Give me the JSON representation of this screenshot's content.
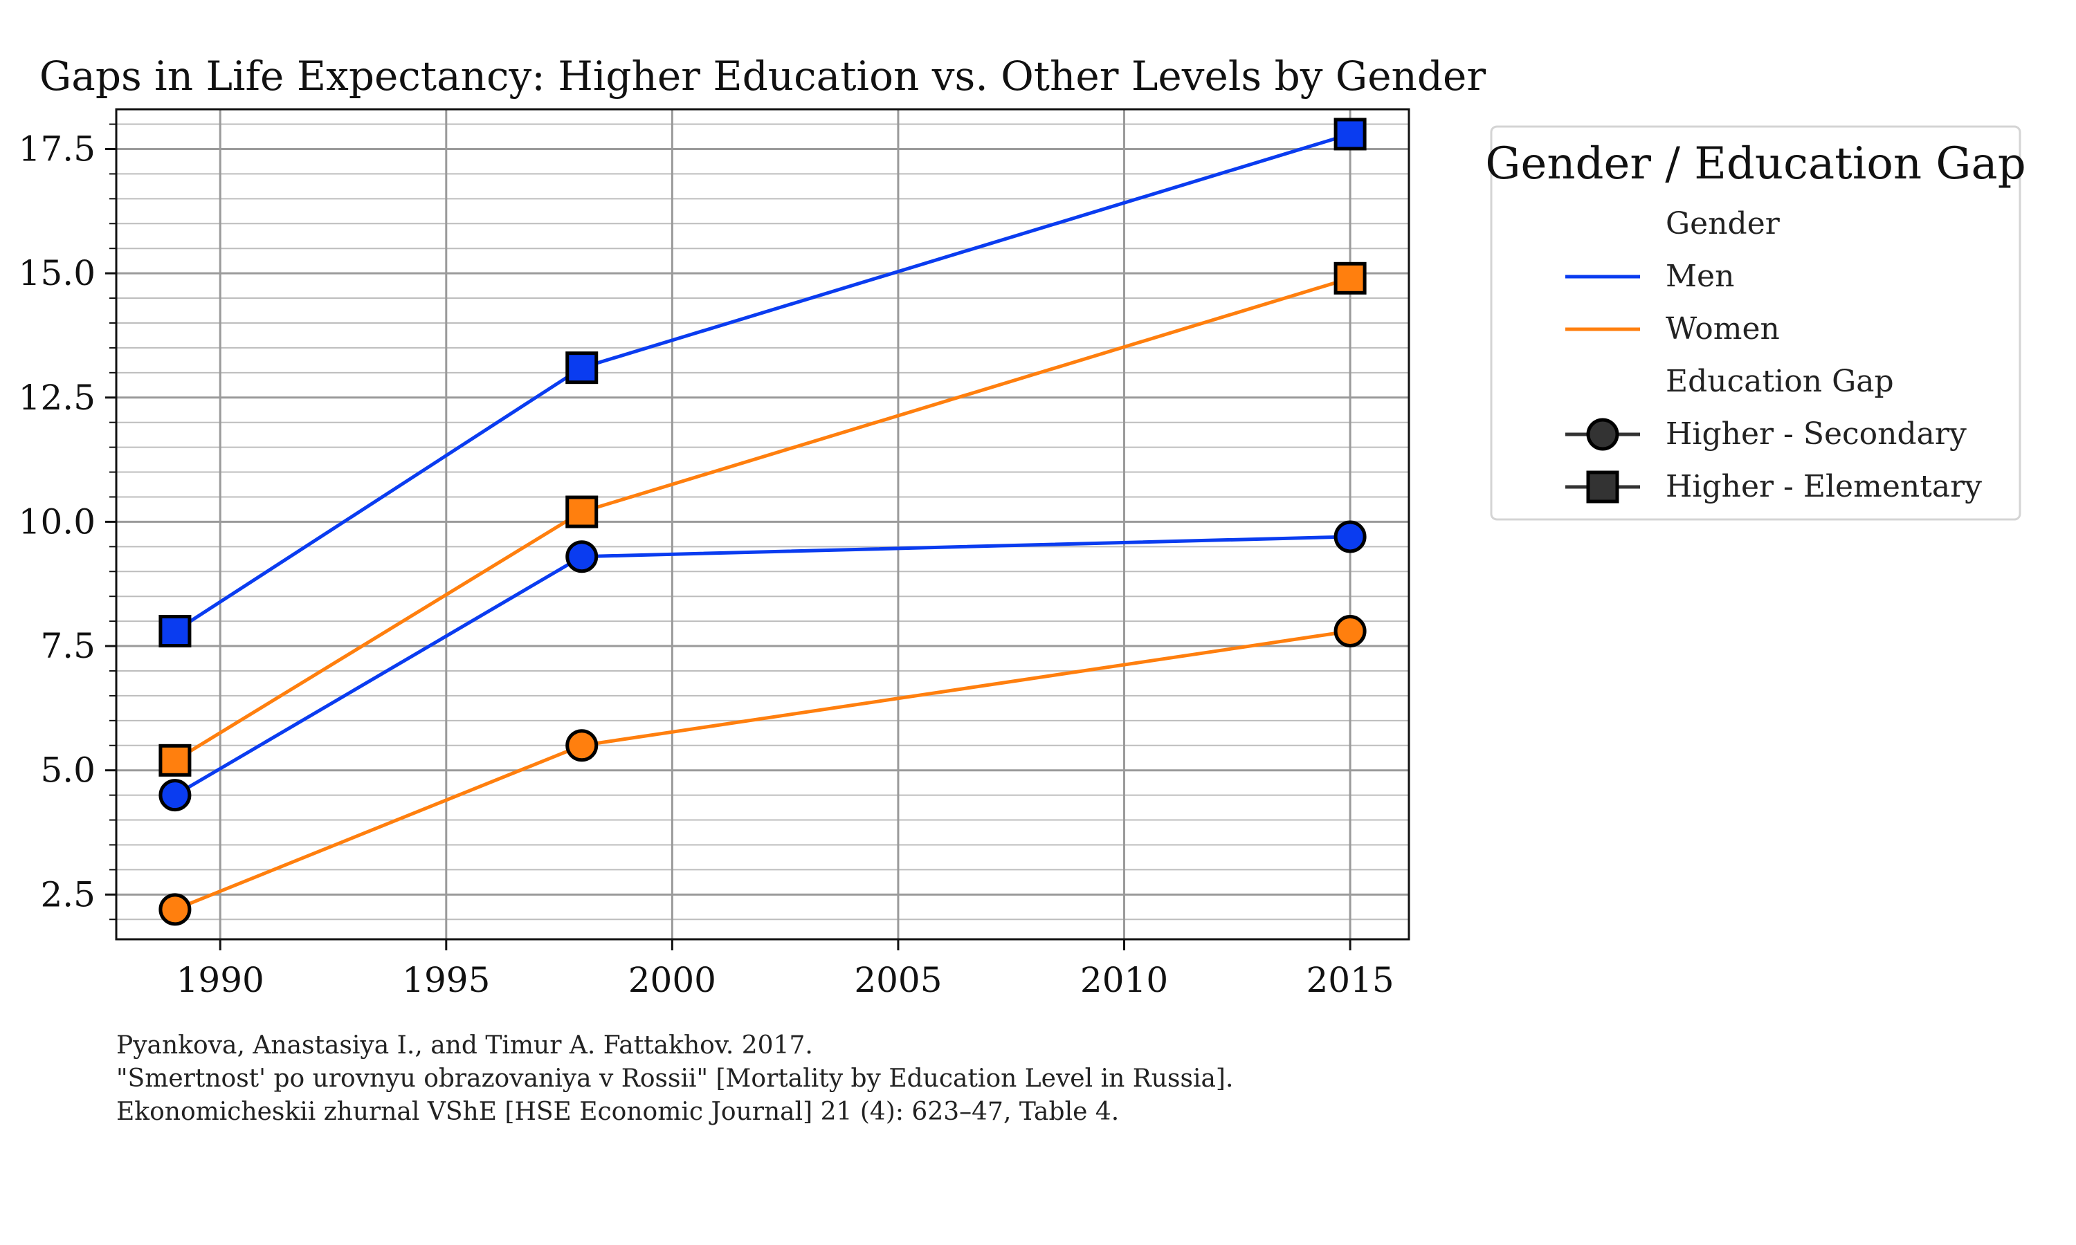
{
  "chart_data": {
    "type": "line",
    "title": "Gaps in Life Expectancy: Higher Education vs. Other Levels by Gender",
    "xlabel": "",
    "ylabel": "",
    "xlim": [
      1987.7,
      2016.3
    ],
    "ylim": [
      1.6,
      18.3
    ],
    "xticks": [
      "1990",
      "1995",
      "2000",
      "2005",
      "2010",
      "2015"
    ],
    "yticks": [
      "2.5",
      "5.0",
      "7.5",
      "10.0",
      "12.5",
      "15.0",
      "17.5"
    ],
    "grid": true,
    "minor_grid": true,
    "series": [
      {
        "gender": "Men",
        "gap": "Higher - Elementary",
        "color": "#0a3cf0",
        "marker": "square",
        "x": [
          1989,
          1998,
          2015
        ],
        "y": [
          7.8,
          13.1,
          17.8
        ]
      },
      {
        "gender": "Women",
        "gap": "Higher - Elementary",
        "color": "#ff7f0e",
        "marker": "square",
        "x": [
          1989,
          1998,
          2015
        ],
        "y": [
          5.2,
          10.2,
          14.9
        ]
      },
      {
        "gender": "Men",
        "gap": "Higher - Secondary",
        "color": "#0a3cf0",
        "marker": "circle",
        "x": [
          1989,
          1998,
          2015
        ],
        "y": [
          4.5,
          9.3,
          9.7
        ]
      },
      {
        "gender": "Women",
        "gap": "Higher - Secondary",
        "color": "#ff7f0e",
        "marker": "circle",
        "x": [
          1989,
          1998,
          2015
        ],
        "y": [
          2.2,
          5.5,
          7.8
        ]
      }
    ],
    "legend": {
      "title": "Gender / Education Gap",
      "placement": "outside-right",
      "gender_header": "Gender",
      "gender_entries": [
        {
          "label": "Men",
          "color": "#0a3cf0"
        },
        {
          "label": "Women",
          "color": "#ff7f0e"
        }
      ],
      "gap_header": "Education Gap",
      "gap_entries": [
        {
          "label": "Higher - Secondary",
          "marker": "circle",
          "color": "#333333"
        },
        {
          "label": "Higher - Elementary",
          "marker": "square",
          "color": "#333333"
        }
      ]
    }
  },
  "source": {
    "line1": "Pyankova, Anastasiya I., and Timur A. Fattakhov. 2017.",
    "line2": "\"Smertnost' po urovnyu obrazovaniya v Rossii\" [Mortality by Education Level in Russia].",
    "line3": "Ekonomicheskii zhurnal VShE [HSE Economic Journal] 21 (4): 623–47, Table 4."
  }
}
